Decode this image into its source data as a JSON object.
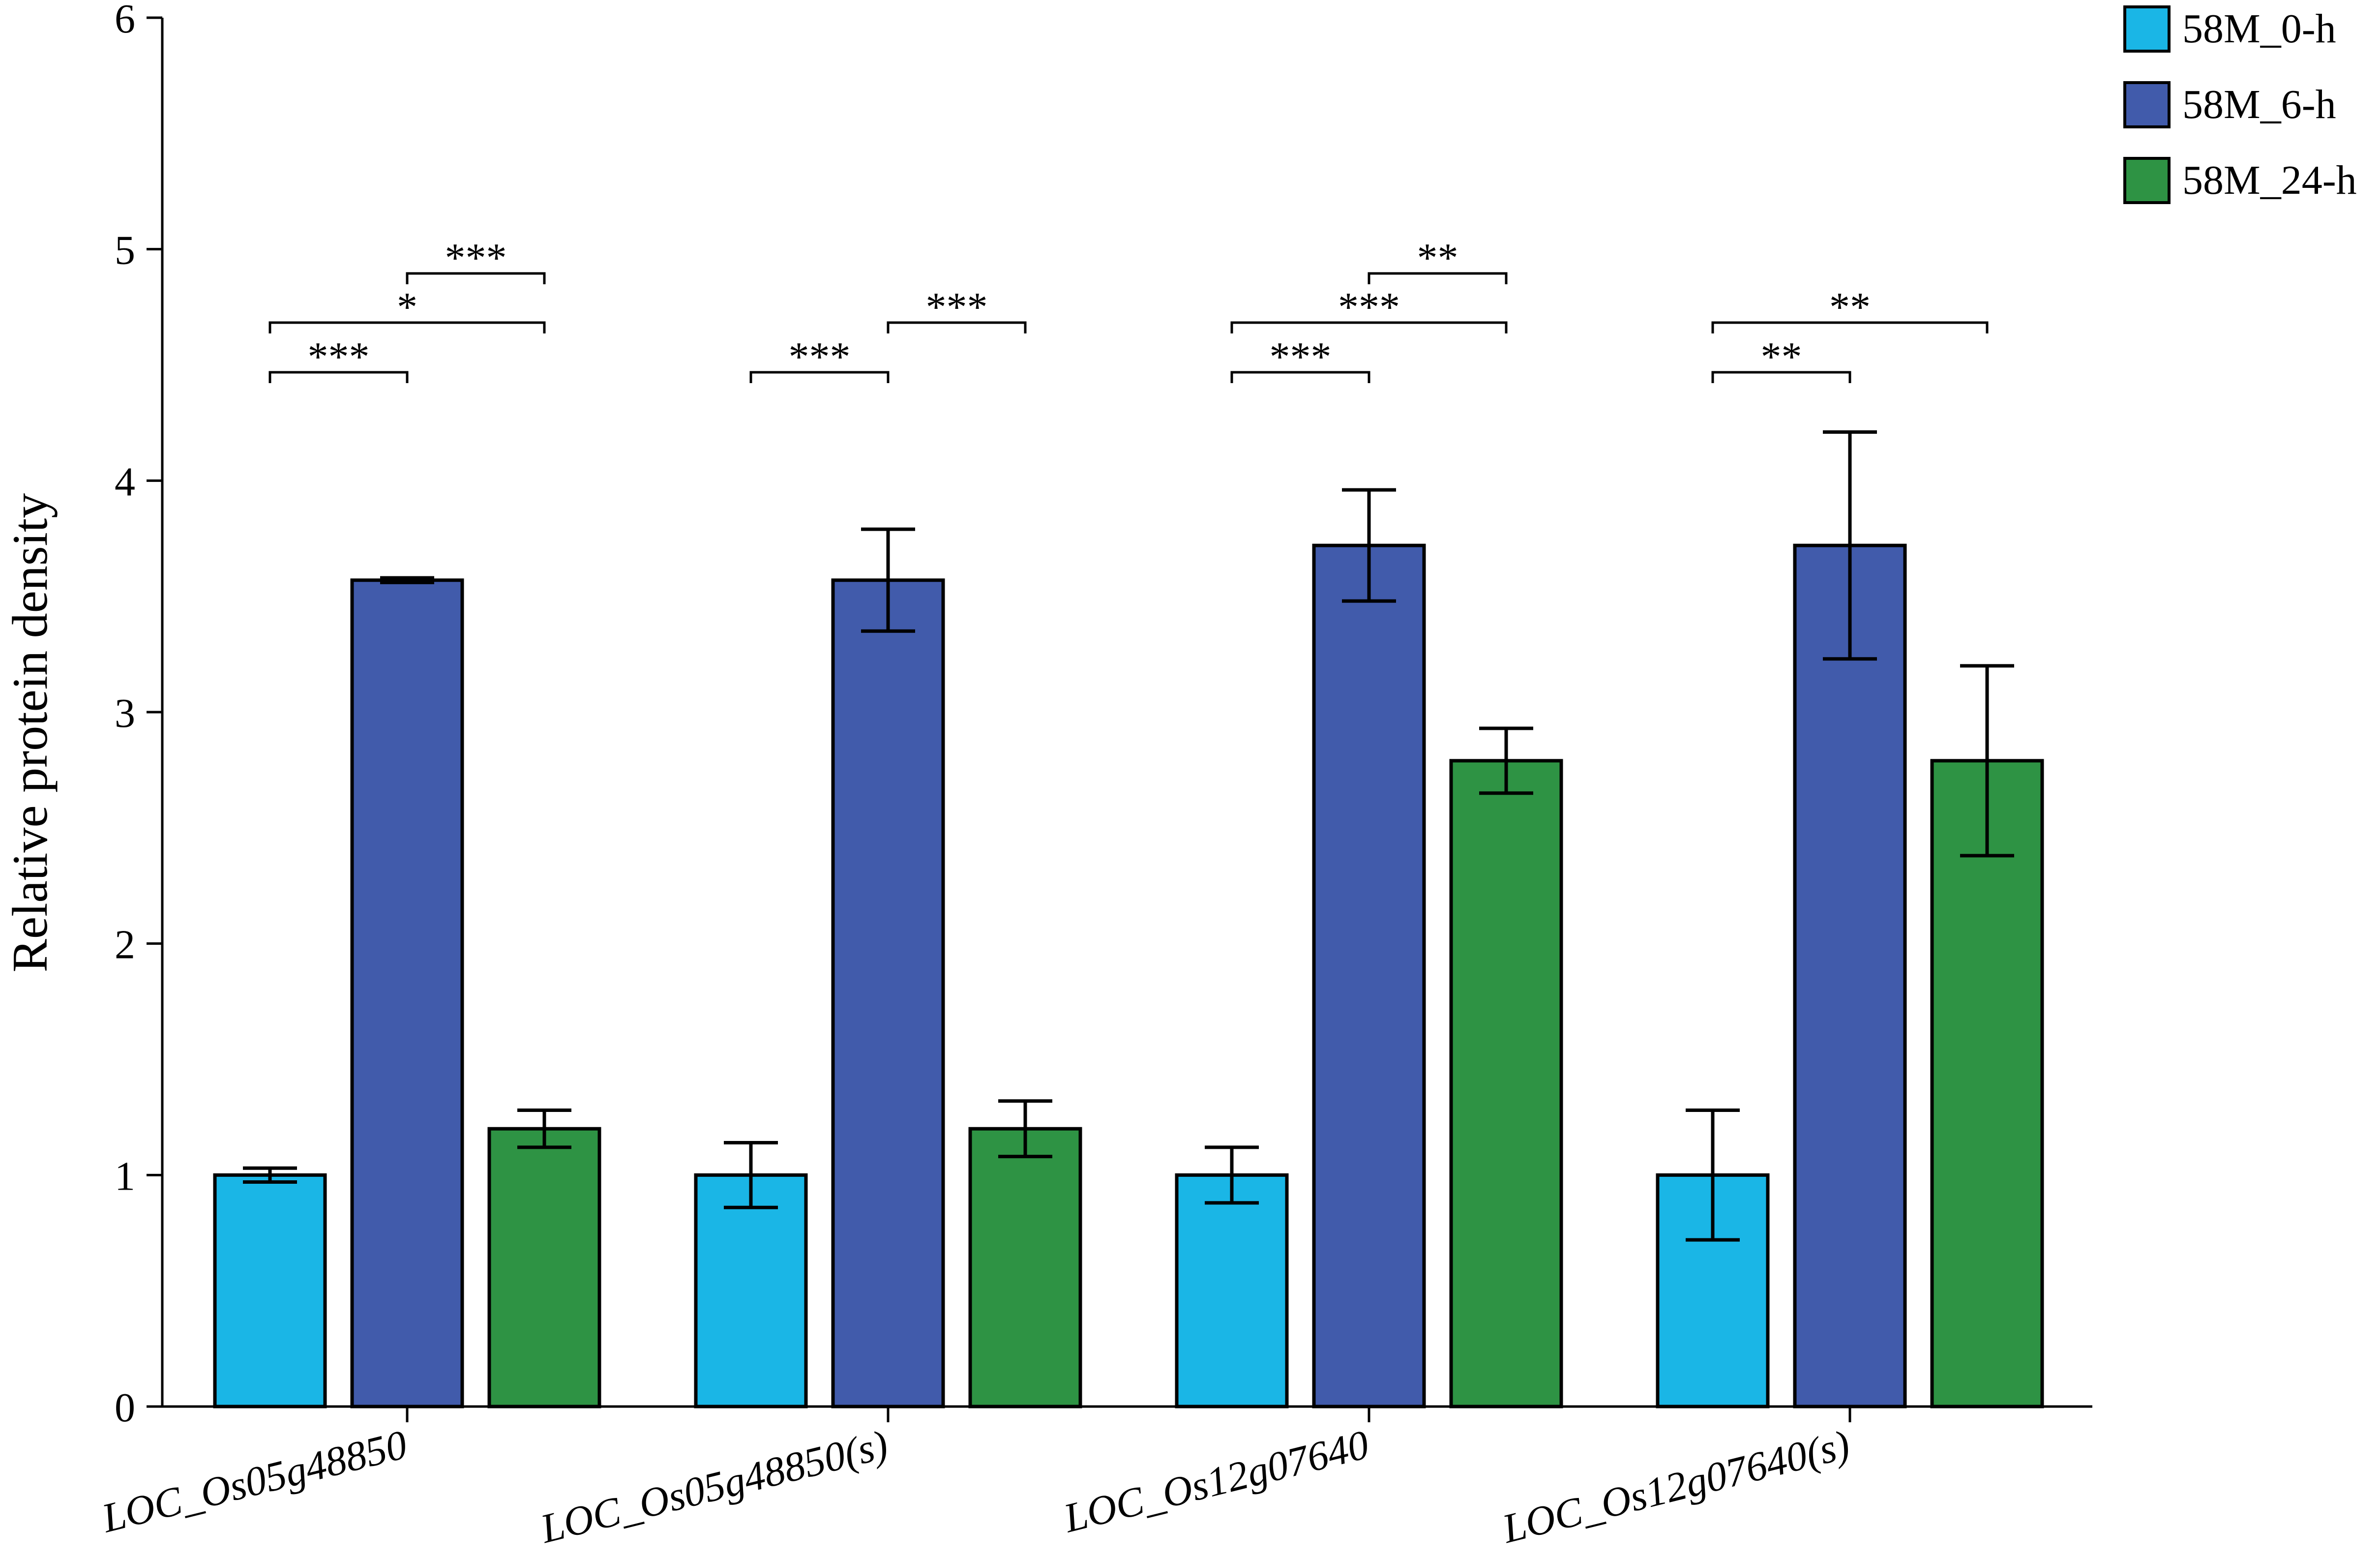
{
  "chart_data": {
    "type": "bar",
    "title": "",
    "xlabel": "",
    "ylabel": "Relative protein density",
    "ylim": [
      0,
      6
    ],
    "yticks": [
      "0",
      "1",
      "2",
      "3",
      "4",
      "5",
      "6"
    ],
    "grid": false,
    "legend_position": "top-right",
    "categories": [
      "LOC_Os05g48850",
      "LOC_Os05g48850(s)",
      "LOC_Os12g07640",
      "LOC_Os12g07640(s)"
    ],
    "series": [
      {
        "name": "58M_0-h",
        "color": "#1ab6e6",
        "values": [
          1.0,
          1.0,
          1.0,
          1.0
        ],
        "error": [
          0.03,
          0.14,
          0.12,
          0.28
        ]
      },
      {
        "name": "58M_6-h",
        "color": "#415bab",
        "values": [
          3.57,
          3.57,
          3.72,
          3.72
        ],
        "error": [
          0.01,
          0.22,
          0.24,
          0.49
        ]
      },
      {
        "name": "58M_24-h",
        "color": "#2e9344",
        "values": [
          1.2,
          1.2,
          2.79,
          2.79
        ],
        "error": [
          0.08,
          0.12,
          0.14,
          0.41
        ]
      }
    ],
    "significance": [
      {
        "group": 0,
        "from": 0,
        "to": 1,
        "label": "***"
      },
      {
        "group": 0,
        "from": 0,
        "to": 2,
        "label": "*"
      },
      {
        "group": 0,
        "from": 1,
        "to": 2,
        "label": "***"
      },
      {
        "group": 1,
        "from": 0,
        "to": 1,
        "label": "***"
      },
      {
        "group": 1,
        "from": 1,
        "to": 2,
        "label": "***"
      },
      {
        "group": 2,
        "from": 0,
        "to": 1,
        "label": "***"
      },
      {
        "group": 2,
        "from": 0,
        "to": 2,
        "label": "***"
      },
      {
        "group": 2,
        "from": 1,
        "to": 2,
        "label": "**"
      },
      {
        "group": 3,
        "from": 0,
        "to": 1,
        "label": "**"
      },
      {
        "group": 3,
        "from": 0,
        "to": 2,
        "label": "**"
      }
    ]
  }
}
